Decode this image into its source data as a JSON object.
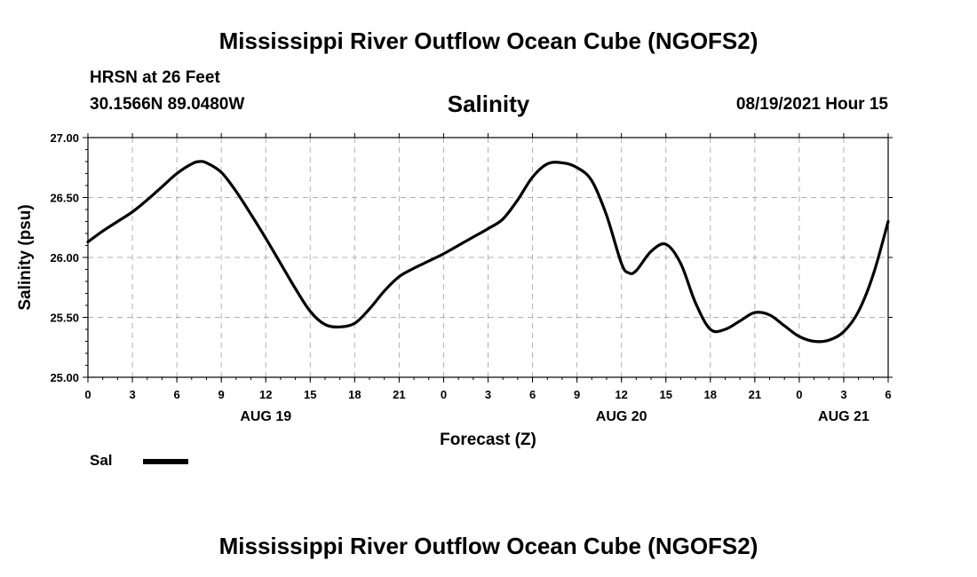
{
  "header": {
    "main_title": "Mississippi River Outflow Ocean Cube (NGOFS2)",
    "station": "HRSN at 26 Feet",
    "coords": "30.1566N  89.0480W",
    "plot_title": "Salinity",
    "datetime": "08/19/2021 Hour 15"
  },
  "footer": {
    "title": "Mississippi River Outflow Ocean Cube (NGOFS2)"
  },
  "legend": {
    "label": "Sal",
    "color": "#000000"
  },
  "chart_data": {
    "type": "line",
    "title": "Salinity",
    "xlabel": "Forecast (Z)",
    "ylabel": "Salinity (psu)",
    "ylim": [
      25.0,
      27.0
    ],
    "xlim": [
      0,
      54
    ],
    "yticks": [
      "25.00",
      "25.50",
      "26.00",
      "26.50",
      "27.00"
    ],
    "y_tick_values": [
      25.0,
      25.5,
      26.0,
      26.5,
      27.0
    ],
    "x_tick_values": [
      0,
      3,
      6,
      9,
      12,
      15,
      18,
      21,
      24,
      27,
      30,
      33,
      36,
      39,
      42,
      45,
      48,
      51,
      54
    ],
    "x_tick_labels": [
      "0",
      "3",
      "6",
      "9",
      "12",
      "15",
      "18",
      "21",
      "0",
      "3",
      "6",
      "9",
      "12",
      "15",
      "18",
      "21",
      "0",
      "3",
      "6"
    ],
    "day_labels": [
      {
        "at": 12,
        "label": "AUG 19"
      },
      {
        "at": 36,
        "label": "AUG 20"
      },
      {
        "at": 51,
        "label": "AUG 21"
      }
    ],
    "grid": true,
    "series": [
      {
        "name": "Sal",
        "x": [
          0,
          1,
          2,
          3,
          4,
          5,
          6,
          7,
          7.5,
          8,
          9,
          10,
          11,
          12,
          13,
          14,
          15,
          16,
          17,
          18,
          19,
          20,
          21,
          22,
          23,
          24,
          25,
          26,
          27,
          28,
          29,
          30,
          31,
          32,
          33,
          34,
          35,
          36,
          36.5,
          37,
          38,
          39,
          40,
          41,
          42,
          43,
          44,
          45,
          46,
          47,
          48,
          49,
          50,
          51,
          52,
          53,
          54
        ],
        "values": [
          26.13,
          26.22,
          26.3,
          26.38,
          26.48,
          26.59,
          26.7,
          26.78,
          26.8,
          26.79,
          26.71,
          26.55,
          26.36,
          26.16,
          25.95,
          25.74,
          25.55,
          25.44,
          25.42,
          25.45,
          25.57,
          25.72,
          25.84,
          25.91,
          25.97,
          26.03,
          26.1,
          26.17,
          26.24,
          26.32,
          26.48,
          26.67,
          26.78,
          26.79,
          26.75,
          26.64,
          26.35,
          25.95,
          25.87,
          25.89,
          26.05,
          26.11,
          25.95,
          25.62,
          25.4,
          25.4,
          25.47,
          25.54,
          25.52,
          25.43,
          25.34,
          25.3,
          25.31,
          25.38,
          25.55,
          25.86,
          26.3
        ]
      }
    ]
  }
}
